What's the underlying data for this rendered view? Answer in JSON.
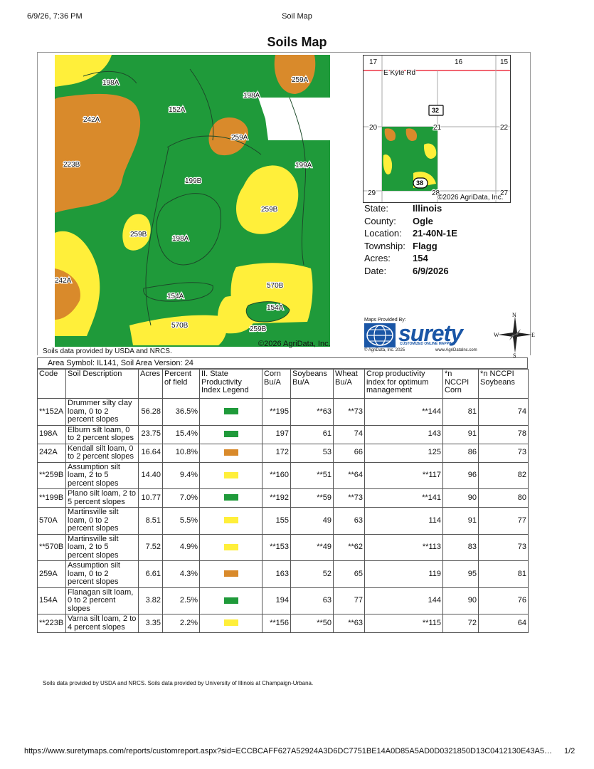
{
  "header": {
    "datetime": "6/9/26, 7:36 PM",
    "doc_title": "Soil Map"
  },
  "title": "Soils Map",
  "map": {
    "copyright": "©2026 AgriData, Inc.",
    "source": "Soils data provided by USDA and NRCS.",
    "labels": [
      "198A",
      "259A",
      "198A",
      "152A",
      "242A",
      "259A",
      "223B",
      "199A",
      "199B",
      "259B",
      "259B",
      "198A",
      "242A",
      "570B",
      "154A",
      "154A",
      "570B",
      "259B"
    ],
    "colors": {
      "green": "#1f9a3a",
      "orange": "#d98a2b",
      "yellow": "#ffef3a"
    }
  },
  "location_map": {
    "road": "E Kyte Rd",
    "sections": [
      "17",
      "16",
      "15",
      "20",
      "21",
      "22",
      "29",
      "28",
      "27"
    ],
    "route_shields": [
      "32",
      "38"
    ],
    "copyright": "©2026 AgriData, Inc."
  },
  "info": [
    {
      "key": "State:",
      "value": "Illinois"
    },
    {
      "key": "County:",
      "value": "Ogle"
    },
    {
      "key": "Location:",
      "value": "21-40N-1E"
    },
    {
      "key": "Township:",
      "value": "Flagg"
    },
    {
      "key": "Acres:",
      "value": "154"
    },
    {
      "key": "Date:",
      "value": "6/9/2026"
    }
  ],
  "provider": {
    "maps_provided_by": "Maps Provided By:",
    "brand": "surety",
    "tagline": "CUSTOMIZED ONLINE MAPPING",
    "copyright": "© AgriData, Inc. 2025",
    "website": "www.AgriDataInc.com"
  },
  "compass": {
    "n": "N",
    "s": "S",
    "e": "E",
    "w": "W"
  },
  "area_symbol": "Area Symbol: IL141, Soil Area Version: 24",
  "table": {
    "headers": [
      "Code",
      "Soil Description",
      "Acres",
      "Percent of field",
      "II. State Productivity Index Legend",
      "Corn Bu/A",
      "Soybeans Bu/A",
      "Wheat Bu/A",
      "Crop productivity index for optimum management",
      "*n NCCPI Corn",
      "*n NCCPI Soybeans"
    ],
    "rows": [
      {
        "code": "**152A",
        "desc": "Drummer silty clay loam, 0 to 2 percent slopes",
        "acres": "56.28",
        "pct": "36.5%",
        "legend": "green",
        "corn": "**195",
        "soy": "**63",
        "wheat": "**73",
        "cpi": "**144",
        "nccpi_corn": "81",
        "nccpi_soy": "74"
      },
      {
        "code": "198A",
        "desc": "Elburn silt loam, 0 to 2 percent slopes",
        "acres": "23.75",
        "pct": "15.4%",
        "legend": "green",
        "corn": "197",
        "soy": "61",
        "wheat": "74",
        "cpi": "143",
        "nccpi_corn": "91",
        "nccpi_soy": "78"
      },
      {
        "code": "242A",
        "desc": "Kendall silt loam, 0 to 2 percent slopes",
        "acres": "16.64",
        "pct": "10.8%",
        "legend": "orange",
        "corn": "172",
        "soy": "53",
        "wheat": "66",
        "cpi": "125",
        "nccpi_corn": "86",
        "nccpi_soy": "73"
      },
      {
        "code": "**259B",
        "desc": "Assumption silt loam, 2 to 5 percent slopes",
        "acres": "14.40",
        "pct": "9.4%",
        "legend": "yellow",
        "corn": "**160",
        "soy": "**51",
        "wheat": "**64",
        "cpi": "**117",
        "nccpi_corn": "96",
        "nccpi_soy": "82"
      },
      {
        "code": "**199B",
        "desc": "Plano silt loam, 2 to 5 percent slopes",
        "acres": "10.77",
        "pct": "7.0%",
        "legend": "green",
        "corn": "**192",
        "soy": "**59",
        "wheat": "**73",
        "cpi": "**141",
        "nccpi_corn": "90",
        "nccpi_soy": "80"
      },
      {
        "code": "570A",
        "desc": "Martinsville silt loam, 0 to 2 percent slopes",
        "acres": "8.51",
        "pct": "5.5%",
        "legend": "yellow",
        "corn": "155",
        "soy": "49",
        "wheat": "63",
        "cpi": "114",
        "nccpi_corn": "91",
        "nccpi_soy": "77"
      },
      {
        "code": "**570B",
        "desc": "Martinsville silt loam, 2 to 5 percent slopes",
        "acres": "7.52",
        "pct": "4.9%",
        "legend": "yellow",
        "corn": "**153",
        "soy": "**49",
        "wheat": "**62",
        "cpi": "**113",
        "nccpi_corn": "83",
        "nccpi_soy": "73"
      },
      {
        "code": "259A",
        "desc": "Assumption silt loam, 0 to 2 percent slopes",
        "acres": "6.61",
        "pct": "4.3%",
        "legend": "orange",
        "corn": "163",
        "soy": "52",
        "wheat": "65",
        "cpi": "119",
        "nccpi_corn": "95",
        "nccpi_soy": "81"
      },
      {
        "code": "154A",
        "desc": "Flanagan silt loam, 0 to 2 percent slopes",
        "acres": "3.82",
        "pct": "2.5%",
        "legend": "green",
        "corn": "194",
        "soy": "63",
        "wheat": "77",
        "cpi": "144",
        "nccpi_corn": "90",
        "nccpi_soy": "76"
      },
      {
        "code": "**223B",
        "desc": "Varna silt loam, 2 to 4 percent slopes",
        "acres": "3.35",
        "pct": "2.2%",
        "legend": "yellow",
        "corn": "**156",
        "soy": "**50",
        "wheat": "**63",
        "cpi": "**115",
        "nccpi_corn": "72",
        "nccpi_soy": "64"
      }
    ]
  },
  "footer_note": "Soils data provided by USDA and NRCS. Soils data provided by University of Illinois at Champaign-Urbana.",
  "url": "https://www.suretymaps.com/reports/customreport.aspx?sid=ECCBCAFF627A52924A3D6DC7751BE14A0D85A5AD0D0321850D13C0412130E43A5…",
  "page": "1/2"
}
